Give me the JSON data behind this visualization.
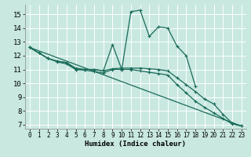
{
  "xlabel": "Humidex (Indice chaleur)",
  "bg_color": "#c8e8e0",
  "grid_color": "#ffffff",
  "line_color": "#1a6b5a",
  "xlim": [
    -0.5,
    23.5
  ],
  "ylim": [
    6.7,
    15.7
  ],
  "yticks": [
    7,
    8,
    9,
    10,
    11,
    12,
    13,
    14,
    15
  ],
  "xticks": [
    0,
    1,
    2,
    3,
    4,
    5,
    6,
    7,
    8,
    9,
    10,
    11,
    12,
    13,
    14,
    15,
    16,
    17,
    18,
    19,
    20,
    21,
    22,
    23
  ],
  "series": [
    {
      "x": [
        0,
        1,
        2,
        3,
        4,
        5,
        6,
        7,
        8,
        9,
        10,
        11,
        12,
        13,
        14,
        15,
        16,
        17,
        18
      ],
      "y": [
        12.6,
        12.2,
        11.8,
        11.6,
        11.5,
        11.0,
        11.0,
        11.0,
        10.9,
        12.8,
        11.0,
        15.2,
        15.3,
        13.4,
        14.1,
        14.0,
        12.7,
        12.0,
        9.8
      ],
      "markers": true
    },
    {
      "x": [
        0,
        1,
        2,
        3,
        4,
        5,
        6,
        7,
        8,
        9,
        10,
        11,
        12,
        13,
        14,
        15,
        16,
        17,
        18,
        19,
        20,
        21,
        22,
        23
      ],
      "y": [
        12.6,
        12.2,
        11.8,
        11.6,
        11.5,
        11.1,
        11.0,
        11.0,
        10.9,
        11.05,
        11.1,
        11.1,
        11.1,
        11.05,
        11.0,
        10.9,
        10.4,
        9.9,
        9.4,
        8.85,
        8.5,
        7.75,
        7.1,
        6.9
      ],
      "markers": true
    },
    {
      "x": [
        0,
        1,
        2,
        3,
        4,
        5,
        6,
        7,
        8,
        9,
        10,
        11,
        12,
        13,
        14,
        15,
        16,
        17,
        18,
        19,
        20,
        21,
        22,
        23
      ],
      "y": [
        12.6,
        12.2,
        11.8,
        11.55,
        11.4,
        11.0,
        10.95,
        10.85,
        10.75,
        11.0,
        11.0,
        11.0,
        10.9,
        10.8,
        10.7,
        10.6,
        9.9,
        9.3,
        8.7,
        8.25,
        7.85,
        7.45,
        7.05,
        6.9
      ],
      "markers": true
    },
    {
      "x": [
        0,
        23
      ],
      "y": [
        12.6,
        6.9
      ],
      "markers": false
    }
  ]
}
